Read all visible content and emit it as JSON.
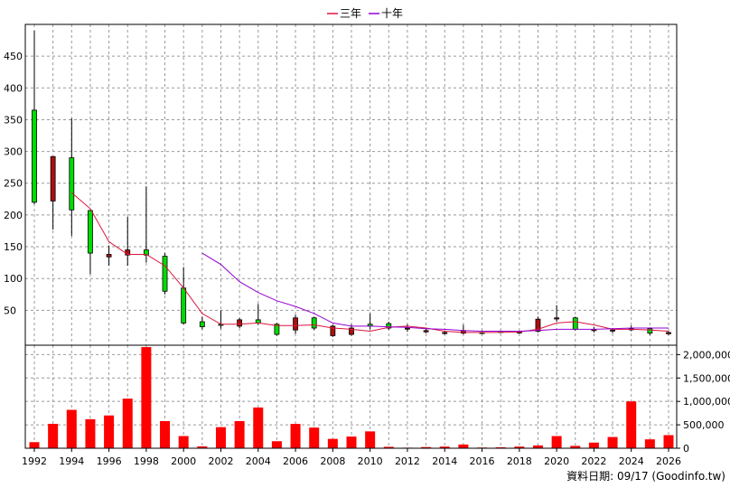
{
  "legend": [
    {
      "label": "三年",
      "color": "#dc143c"
    },
    {
      "label": "十年",
      "color": "#9400d3"
    }
  ],
  "source_text": "資料日期: 09/17 (Goodinfo.tw)",
  "colors": {
    "up": "#00dd00",
    "down": "#aa1111",
    "volume": "#ff0000",
    "grid": "#999999"
  },
  "chart_data": {
    "type": "candlestick+bar",
    "years": [
      1992,
      1993,
      1994,
      1995,
      1996,
      1997,
      1998,
      1999,
      2000,
      2001,
      2002,
      2003,
      2004,
      2005,
      2006,
      2007,
      2008,
      2009,
      2010,
      2011,
      2012,
      2013,
      2014,
      2015,
      2016,
      2017,
      2018,
      2019,
      2020,
      2021,
      2022,
      2023,
      2024,
      2025,
      2026
    ],
    "x_ticks": [
      "1992",
      "1994",
      "1996",
      "1998",
      "2000",
      "2002",
      "2004",
      "2006",
      "2008",
      "2010",
      "2012",
      "2014",
      "2016",
      "2018",
      "2020",
      "2022",
      "2024",
      "2026"
    ],
    "price_ticks": [
      "50",
      "100",
      "150",
      "200",
      "250",
      "300",
      "350",
      "400",
      "450"
    ],
    "price_ylim": [
      -5,
      500
    ],
    "volume_ticks": [
      "0",
      "500,000",
      "1,000,000",
      "1,500,000",
      "2,000,000"
    ],
    "volume_ylim": [
      0,
      2200000
    ],
    "ohlc": [
      {
        "year": 1992,
        "open": 220,
        "high": 490,
        "low": 217,
        "close": 365
      },
      {
        "year": 1993,
        "open": 292,
        "high": 292,
        "low": 177,
        "close": 222
      },
      {
        "year": 1994,
        "open": 208,
        "high": 352,
        "low": 167,
        "close": 290
      },
      {
        "year": 1995,
        "open": 140,
        "high": 208,
        "low": 107,
        "close": 207
      },
      {
        "year": 1996,
        "open": 138,
        "high": 152,
        "low": 120,
        "close": 134
      },
      {
        "year": 1997,
        "open": 145,
        "high": 197,
        "low": 120,
        "close": 137
      },
      {
        "year": 1998,
        "open": 137,
        "high": 245,
        "low": 125,
        "close": 145
      },
      {
        "year": 1999,
        "open": 80,
        "high": 140,
        "low": 75,
        "close": 135
      },
      {
        "year": 2000,
        "open": 30,
        "high": 118,
        "low": 28,
        "close": 85
      },
      {
        "year": 2001,
        "open": 24,
        "high": 40,
        "low": 20,
        "close": 32
      },
      {
        "year": 2002,
        "open": 27,
        "high": 50,
        "low": 21,
        "close": 28
      },
      {
        "year": 2003,
        "open": 35,
        "high": 38,
        "low": 22,
        "close": 25
      },
      {
        "year": 2004,
        "open": 30,
        "high": 60,
        "low": 27,
        "close": 35
      },
      {
        "year": 2005,
        "open": 12,
        "high": 30,
        "low": 10,
        "close": 28
      },
      {
        "year": 2006,
        "open": 38,
        "high": 43,
        "low": 13,
        "close": 19
      },
      {
        "year": 2007,
        "open": 22,
        "high": 40,
        "low": 19,
        "close": 38
      },
      {
        "year": 2008,
        "open": 25,
        "high": 27,
        "low": 8,
        "close": 10
      },
      {
        "year": 2009,
        "open": 22,
        "high": 28,
        "low": 10,
        "close": 12
      },
      {
        "year": 2010,
        "open": 25,
        "high": 45,
        "low": 20,
        "close": 28
      },
      {
        "year": 2011,
        "open": 22,
        "high": 32,
        "low": 19,
        "close": 29
      },
      {
        "year": 2012,
        "open": 22,
        "high": 28,
        "low": 16,
        "close": 21
      },
      {
        "year": 2013,
        "open": 18,
        "high": 22,
        "low": 14,
        "close": 16
      },
      {
        "year": 2014,
        "open": 15,
        "high": 17,
        "low": 12,
        "close": 14
      },
      {
        "year": 2015,
        "open": 18,
        "high": 27,
        "low": 12,
        "close": 14
      },
      {
        "year": 2016,
        "open": 14,
        "high": 18,
        "low": 13,
        "close": 15
      },
      {
        "year": 2017,
        "open": 15,
        "high": 18,
        "low": 14,
        "close": 17
      },
      {
        "year": 2018,
        "open": 16,
        "high": 18,
        "low": 13,
        "close": 15
      },
      {
        "year": 2019,
        "open": 36,
        "high": 40,
        "low": 15,
        "close": 17
      },
      {
        "year": 2020,
        "open": 38,
        "high": 58,
        "low": 32,
        "close": 37
      },
      {
        "year": 2021,
        "open": 20,
        "high": 40,
        "low": 18,
        "close": 38
      },
      {
        "year": 2022,
        "open": 20,
        "high": 24,
        "low": 15,
        "close": 18
      },
      {
        "year": 2023,
        "open": 19,
        "high": 22,
        "low": 14,
        "close": 18
      },
      {
        "year": 2024,
        "open": 20,
        "high": 26,
        "low": 17,
        "close": 21
      },
      {
        "year": 2025,
        "open": 14,
        "high": 23,
        "low": 11,
        "close": 21
      },
      {
        "year": 2026,
        "open": 15,
        "high": 17,
        "low": 11,
        "close": 13
      }
    ],
    "ma3": [
      {
        "year": 1994,
        "value": 235
      },
      {
        "year": 1995,
        "value": 210
      },
      {
        "year": 1996,
        "value": 158
      },
      {
        "year": 1997,
        "value": 138
      },
      {
        "year": 1998,
        "value": 138
      },
      {
        "year": 1999,
        "value": 120
      },
      {
        "year": 2000,
        "value": 85
      },
      {
        "year": 2001,
        "value": 45
      },
      {
        "year": 2002,
        "value": 28
      },
      {
        "year": 2003,
        "value": 28
      },
      {
        "year": 2004,
        "value": 30
      },
      {
        "year": 2005,
        "value": 26
      },
      {
        "year": 2006,
        "value": 26
      },
      {
        "year": 2007,
        "value": 27
      },
      {
        "year": 2008,
        "value": 22
      },
      {
        "year": 2009,
        "value": 20
      },
      {
        "year": 2010,
        "value": 17
      },
      {
        "year": 2011,
        "value": 23
      },
      {
        "year": 2012,
        "value": 25
      },
      {
        "year": 2013,
        "value": 22
      },
      {
        "year": 2014,
        "value": 17
      },
      {
        "year": 2015,
        "value": 15
      },
      {
        "year": 2016,
        "value": 15
      },
      {
        "year": 2017,
        "value": 15
      },
      {
        "year": 2018,
        "value": 16
      },
      {
        "year": 2019,
        "value": 20
      },
      {
        "year": 2020,
        "value": 30
      },
      {
        "year": 2021,
        "value": 32
      },
      {
        "year": 2022,
        "value": 27
      },
      {
        "year": 2023,
        "value": 20
      },
      {
        "year": 2024,
        "value": 20
      },
      {
        "year": 2025,
        "value": 19
      },
      {
        "year": 2026,
        "value": 17
      }
    ],
    "ma10": [
      {
        "year": 2001,
        "value": 140
      },
      {
        "year": 2002,
        "value": 122
      },
      {
        "year": 2003,
        "value": 95
      },
      {
        "year": 2004,
        "value": 78
      },
      {
        "year": 2005,
        "value": 65
      },
      {
        "year": 2006,
        "value": 56
      },
      {
        "year": 2007,
        "value": 45
      },
      {
        "year": 2008,
        "value": 30
      },
      {
        "year": 2009,
        "value": 25
      },
      {
        "year": 2010,
        "value": 25
      },
      {
        "year": 2011,
        "value": 24
      },
      {
        "year": 2012,
        "value": 23
      },
      {
        "year": 2013,
        "value": 21
      },
      {
        "year": 2014,
        "value": 20
      },
      {
        "year": 2015,
        "value": 18
      },
      {
        "year": 2016,
        "value": 17
      },
      {
        "year": 2017,
        "value": 17
      },
      {
        "year": 2018,
        "value": 17
      },
      {
        "year": 2019,
        "value": 18
      },
      {
        "year": 2020,
        "value": 20
      },
      {
        "year": 2021,
        "value": 20
      },
      {
        "year": 2022,
        "value": 20
      },
      {
        "year": 2023,
        "value": 21
      },
      {
        "year": 2024,
        "value": 22
      },
      {
        "year": 2025,
        "value": 22
      },
      {
        "year": 2026,
        "value": 22
      }
    ],
    "volume": [
      {
        "year": 1992,
        "value": 130000
      },
      {
        "year": 1993,
        "value": 520000
      },
      {
        "year": 1994,
        "value": 820000
      },
      {
        "year": 1995,
        "value": 620000
      },
      {
        "year": 1996,
        "value": 700000
      },
      {
        "year": 1997,
        "value": 1060000
      },
      {
        "year": 1998,
        "value": 2160000
      },
      {
        "year": 1999,
        "value": 580000
      },
      {
        "year": 2000,
        "value": 260000
      },
      {
        "year": 2001,
        "value": 40000
      },
      {
        "year": 2002,
        "value": 450000
      },
      {
        "year": 2003,
        "value": 580000
      },
      {
        "year": 2004,
        "value": 870000
      },
      {
        "year": 2005,
        "value": 150000
      },
      {
        "year": 2006,
        "value": 520000
      },
      {
        "year": 2007,
        "value": 440000
      },
      {
        "year": 2008,
        "value": 200000
      },
      {
        "year": 2009,
        "value": 250000
      },
      {
        "year": 2010,
        "value": 360000
      },
      {
        "year": 2011,
        "value": 30000
      },
      {
        "year": 2012,
        "value": 12000
      },
      {
        "year": 2013,
        "value": 25000
      },
      {
        "year": 2014,
        "value": 35000
      },
      {
        "year": 2015,
        "value": 80000
      },
      {
        "year": 2016,
        "value": 15000
      },
      {
        "year": 2017,
        "value": 20000
      },
      {
        "year": 2018,
        "value": 35000
      },
      {
        "year": 2019,
        "value": 60000
      },
      {
        "year": 2020,
        "value": 260000
      },
      {
        "year": 2021,
        "value": 50000
      },
      {
        "year": 2022,
        "value": 120000
      },
      {
        "year": 2023,
        "value": 240000
      },
      {
        "year": 2024,
        "value": 1000000
      },
      {
        "year": 2025,
        "value": 190000
      },
      {
        "year": 2026,
        "value": 280000
      }
    ]
  }
}
